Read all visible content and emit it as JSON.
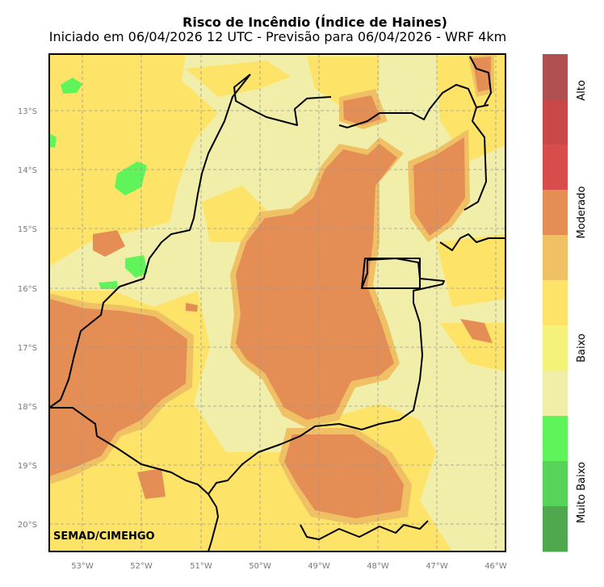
{
  "title": "Risco de Incêndio (Índice de Haines)",
  "subtitle": "Iniciado em 06/04/2026 12 UTC - Previsão para 06/04/2026 - WRF 4km",
  "credit": "SEMAD/CIMEHGO",
  "lat_ticks": [
    "13°S",
    "14°S",
    "15°S",
    "16°S",
    "17°S",
    "18°S",
    "19°S",
    "20°S"
  ],
  "lon_ticks": [
    "53°W",
    "52°W",
    "51°W",
    "50°W",
    "49°W",
    "48°W",
    "47°W",
    "46°W"
  ],
  "map_extent": {
    "lon_min": -53.55,
    "lon_max": -45.85,
    "lat_max": -12.0,
    "lat_min": -20.45
  },
  "colorbar": {
    "classes": [
      {
        "name": "Alto",
        "colors": [
          "#b05050",
          "#c84848",
          "#d84c4c"
        ]
      },
      {
        "name": "Moderado",
        "colors": [
          "#e48e55",
          "#f0c065"
        ]
      },
      {
        "name": "Baixo",
        "colors": [
          "#fde367",
          "#f5f27a",
          "#f0eea8"
        ]
      },
      {
        "name": "Muito Baixo",
        "colors": [
          "#5ff45a",
          "#58d35a",
          "#50a84e"
        ]
      }
    ]
  },
  "colors": {
    "background_field": "#f0eea8",
    "low_yellow": "#fde367",
    "moderate_orange": "#e48e55",
    "moderate_light": "#f0c065",
    "green": "#5ff45a",
    "grid": "#9a9a9a",
    "border": "#000000"
  },
  "grid_lines": true
}
